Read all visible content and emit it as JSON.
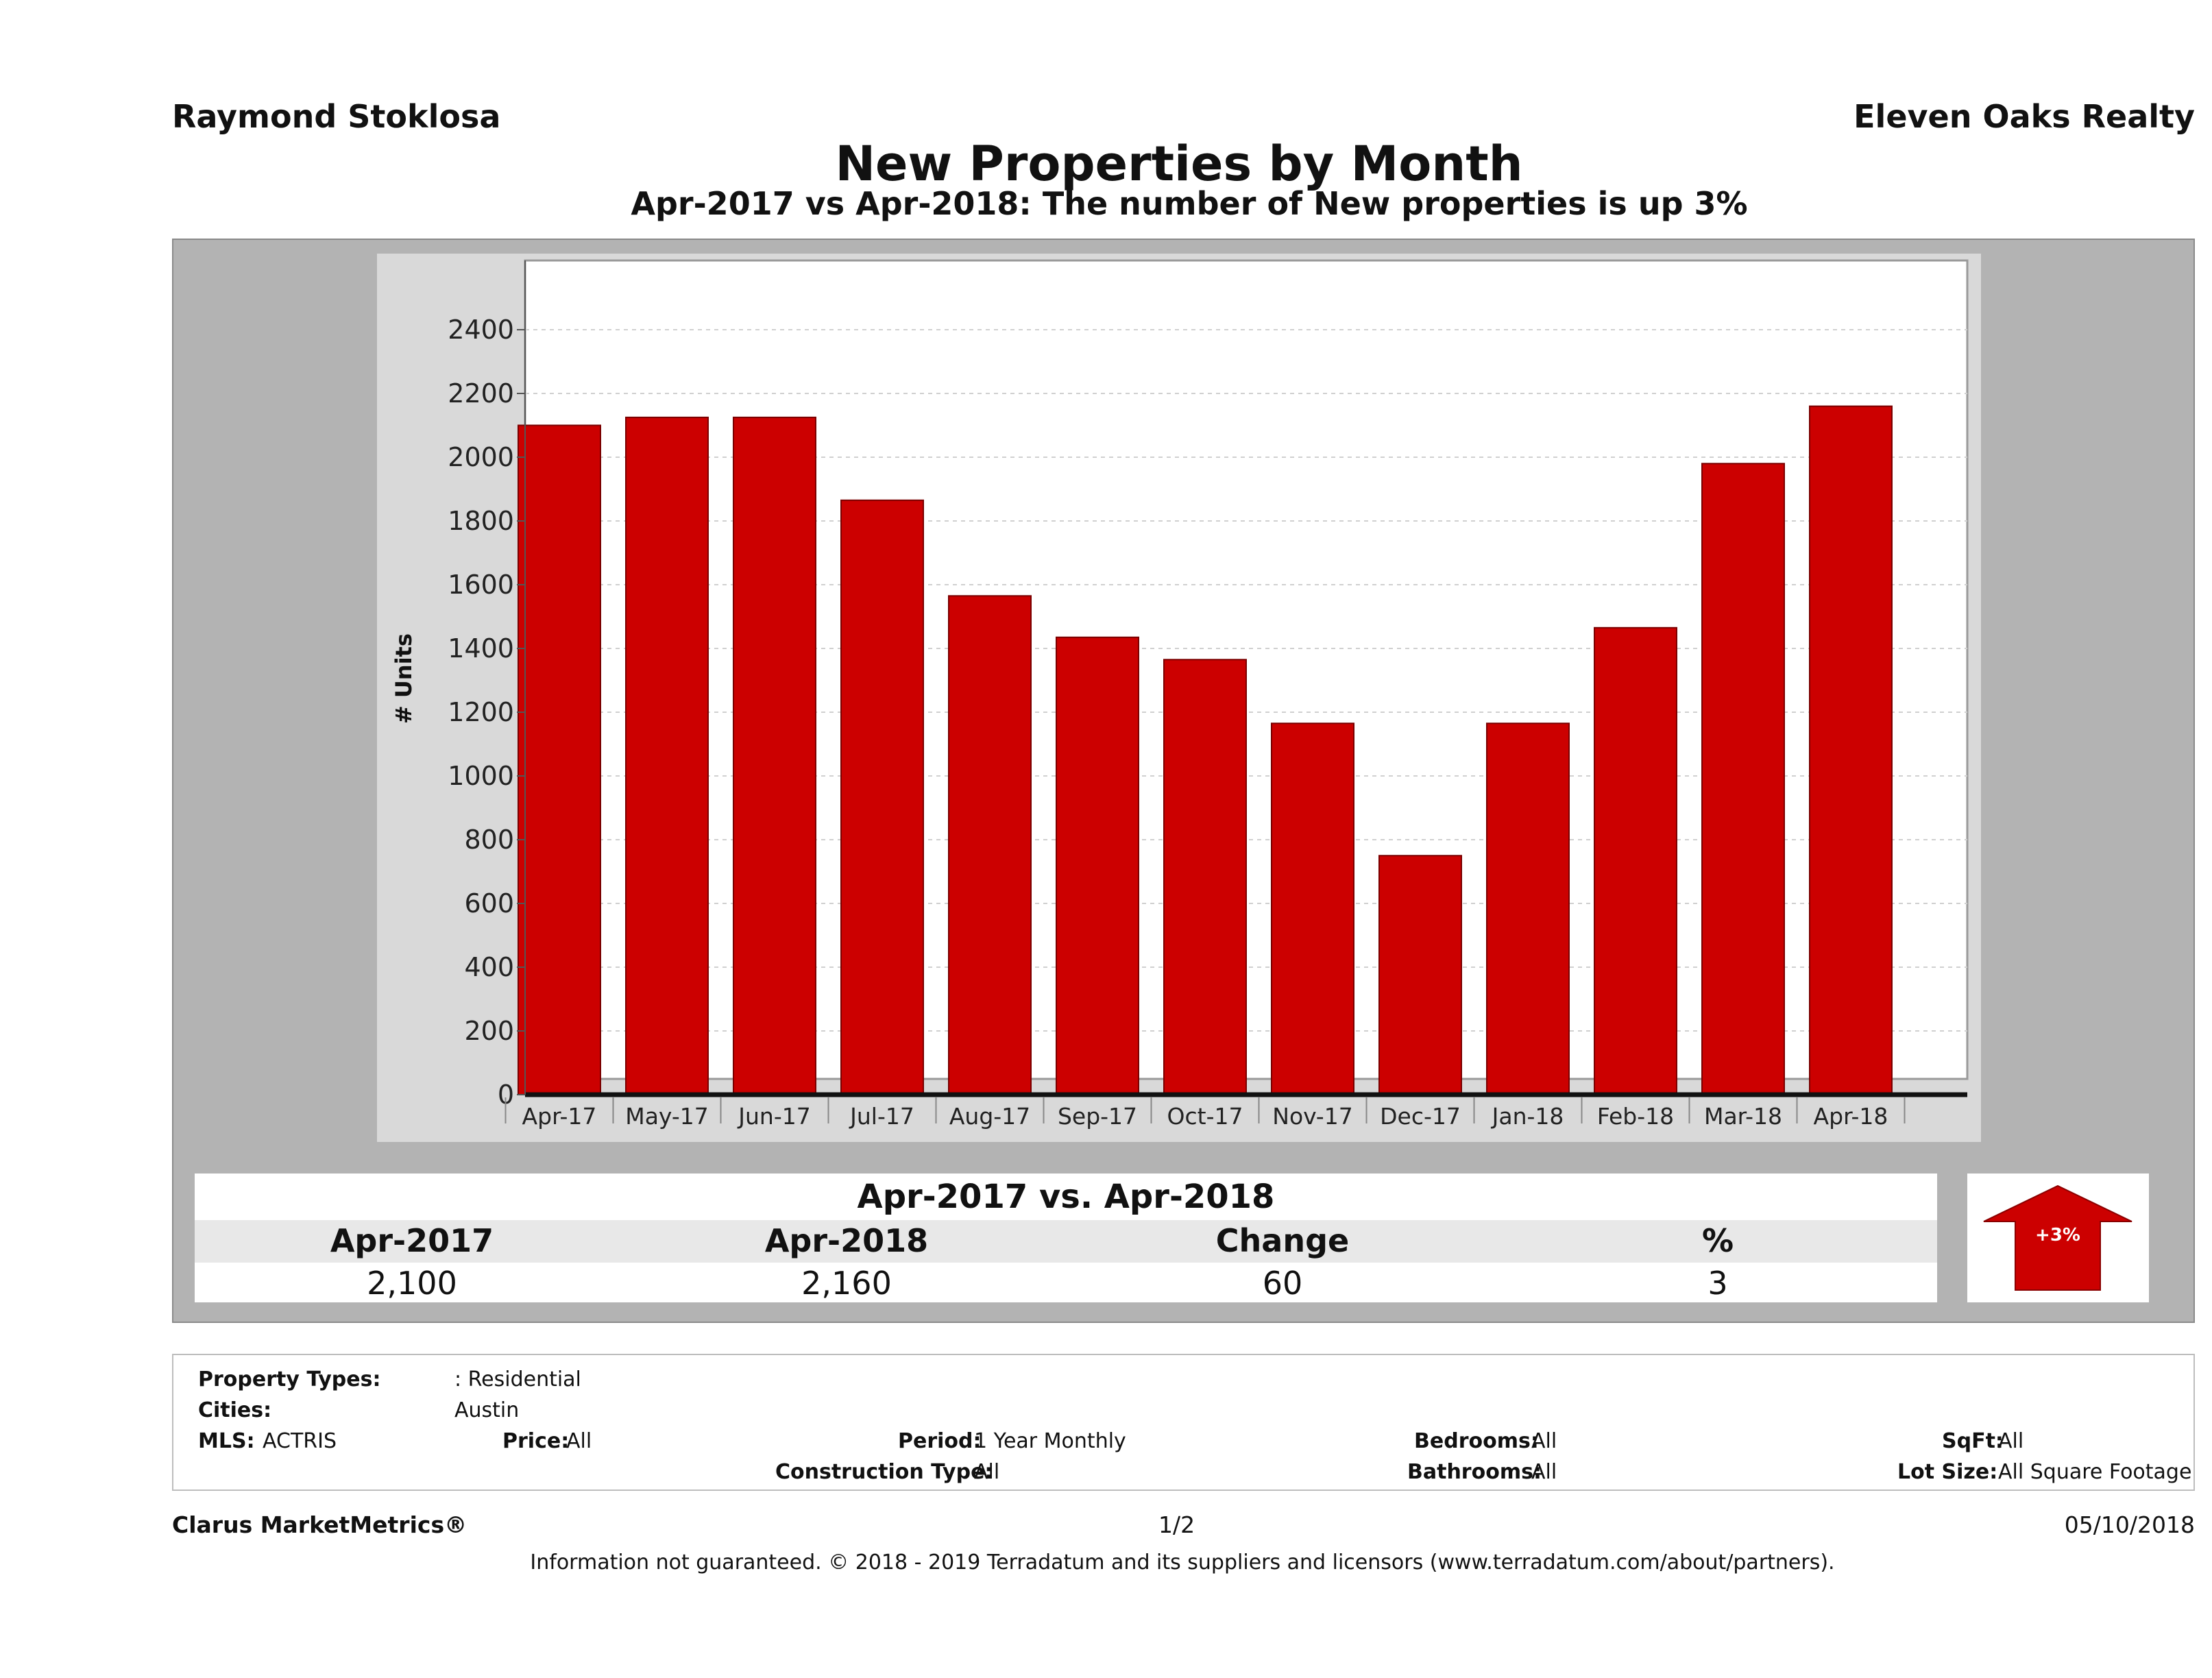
{
  "header": {
    "agent_name": "Raymond Stoklosa",
    "brokerage": "Eleven Oaks Realty",
    "title": "New Properties by Month",
    "subtitle": "Apr-2017 vs Apr-2018: The number of New  properties is up 3%"
  },
  "chart_data": {
    "type": "bar",
    "title": "New Properties by Month",
    "ylabel": "# Units",
    "xlabel": "",
    "ylim": [
      0,
      2500
    ],
    "yticks": [
      0,
      200,
      400,
      600,
      800,
      1000,
      1200,
      1400,
      1600,
      1800,
      2000,
      2200,
      2400
    ],
    "grid": true,
    "categories": [
      "Apr-17",
      "May-17",
      "Jun-17",
      "Jul-17",
      "Aug-17",
      "Sep-17",
      "Oct-17",
      "Nov-17",
      "Dec-17",
      "Jan-18",
      "Feb-18",
      "Mar-18",
      "Apr-18"
    ],
    "values": [
      2100,
      2125,
      2125,
      1865,
      1565,
      1435,
      1365,
      1165,
      750,
      1165,
      1465,
      1980,
      2160
    ],
    "bar_color": "#cc0000"
  },
  "comparison": {
    "heading": "Apr-2017 vs. Apr-2018",
    "columns": [
      "Apr-2017",
      "Apr-2018",
      "Change",
      "%"
    ],
    "values": [
      "2,100",
      "2,160",
      "60",
      "3"
    ],
    "badge": "+3%",
    "badge_direction": "up",
    "badge_color": "#cc0000"
  },
  "filters": {
    "property_types_label": "Property Types:",
    "property_types_value": ": Residential",
    "cities_label": "Cities:",
    "cities_value": "Austin",
    "mls_label": "MLS:",
    "mls_value": "ACTRIS",
    "price_label": "Price:",
    "price_value": "All",
    "period_label": "Period:",
    "period_value": "1 Year Monthly",
    "construction_label": "Construction Type:",
    "construction_value": "All",
    "bedrooms_label": "Bedrooms:",
    "bedrooms_value": "All",
    "bathrooms_label": "Bathrooms:",
    "bathrooms_value": "All",
    "sqft_label": "SqFt:",
    "sqft_value": "All",
    "lot_label": "Lot Size:",
    "lot_value": "All Square Footage"
  },
  "footer": {
    "brand": "Clarus MarketMetrics®",
    "page": "1/2",
    "date": "05/10/2018",
    "note": "Information not guaranteed. © 2018 - 2019 Terradatum and its suppliers and licensors (www.terradatum.com/about/partners)."
  }
}
